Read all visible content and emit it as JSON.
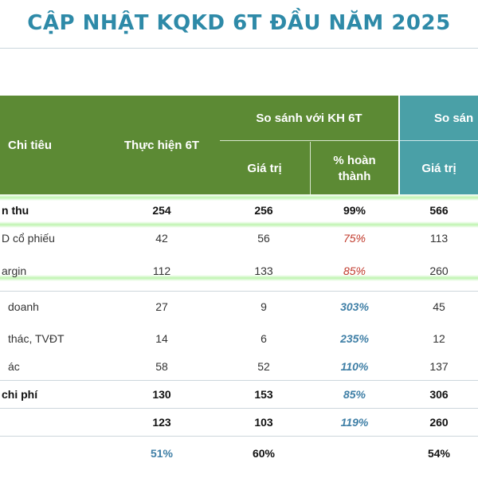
{
  "title": "CẬP NHẬT KQKD 6T ĐẦU NĂM 2025",
  "header": {
    "chi_tieu": "Chi tiêu",
    "thuc_hien": "Thực hiện 6T",
    "so_sanh_kh": "So sánh với KH 6T",
    "gia_tri": "Giá trị",
    "pct_line1": "% hoàn",
    "pct_line2": "thành",
    "so_sanh_right": "So sán",
    "gia_tri_right": "Giá trị"
  },
  "rows": [
    {
      "label": "n thu",
      "actual": "254",
      "plan": "256",
      "pct": "99%",
      "right": "566"
    },
    {
      "label": "D cổ phiếu",
      "actual": "42",
      "plan": "56",
      "pct": "75%",
      "right": "113"
    },
    {
      "label": "argin",
      "actual": "112",
      "plan": "133",
      "pct": "85%",
      "right": "260"
    },
    {
      "label": "doanh",
      "actual": "27",
      "plan": "9",
      "pct": "303%",
      "right": "45"
    },
    {
      "label": "thác, TVĐT",
      "actual": "14",
      "plan": "6",
      "pct": "235%",
      "right": "12"
    },
    {
      "label": "ác",
      "actual": "58",
      "plan": "52",
      "pct": "110%",
      "right": "137"
    },
    {
      "label": "chi phí",
      "actual": "130",
      "plan": "153",
      "pct": "85%",
      "right": "306"
    },
    {
      "label": "",
      "actual": "123",
      "plan": "103",
      "pct": "119%",
      "right": "260"
    },
    {
      "label": "",
      "actual": "51%",
      "plan": "60%",
      "pct": "",
      "right": "54%"
    }
  ],
  "colors": {
    "title": "#2e8aa8",
    "header_green": "#5c8a34",
    "header_teal": "#4aa0a7",
    "pct_below": "#c0392b",
    "pct_above": "#3f7fa6"
  }
}
